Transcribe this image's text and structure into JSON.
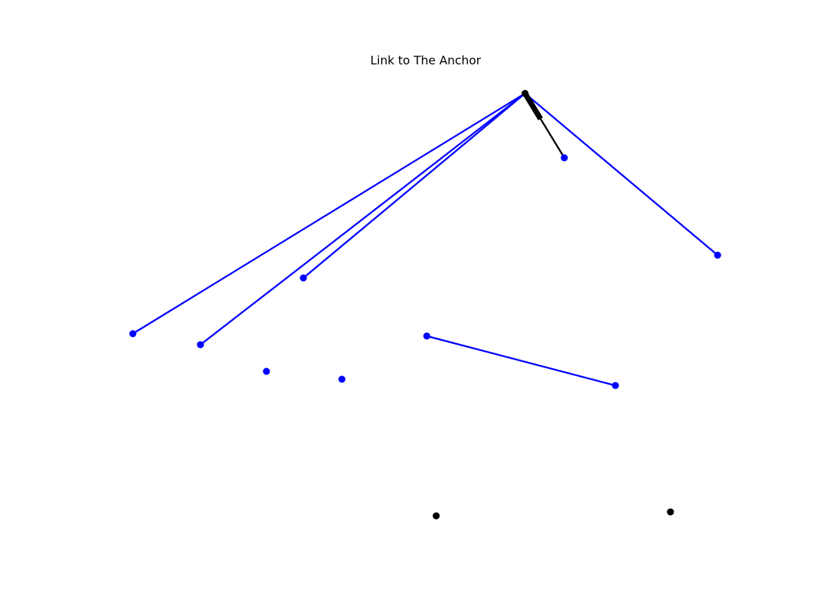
{
  "title": "Link to The Anchor",
  "colors": {
    "link": "#0000ff",
    "node": "#0000ff",
    "pointer": "#000000",
    "detached_node": "#000000",
    "background": "#ffffff"
  },
  "nodes": [
    {
      "id": "anchor",
      "color": "#000000"
    },
    {
      "id": "n1",
      "color": "#0000ff"
    },
    {
      "id": "n2",
      "color": "#0000ff"
    },
    {
      "id": "n3",
      "color": "#0000ff"
    },
    {
      "id": "n4",
      "color": "#0000ff"
    },
    {
      "id": "n5",
      "color": "#0000ff"
    },
    {
      "id": "n6",
      "color": "#0000ff"
    },
    {
      "id": "n7",
      "color": "#0000ff"
    },
    {
      "id": "n8",
      "color": "#0000ff"
    },
    {
      "id": "n9",
      "color": "#0000ff"
    },
    {
      "id": "n10",
      "color": "#000000"
    },
    {
      "id": "n11",
      "color": "#000000"
    }
  ],
  "links": [
    {
      "from": "anchor",
      "to": "n1",
      "color": "#0000ff"
    },
    {
      "from": "anchor",
      "to": "n2",
      "color": "#0000ff"
    },
    {
      "from": "anchor",
      "to": "n3",
      "color": "#0000ff"
    },
    {
      "from": "anchor",
      "to": "n4",
      "color": "#0000ff"
    },
    {
      "from": "n5",
      "to": "n6",
      "color": "#0000ff"
    }
  ],
  "arrows": [
    {
      "from": "n9",
      "to": "anchor",
      "color": "#000000"
    }
  ]
}
